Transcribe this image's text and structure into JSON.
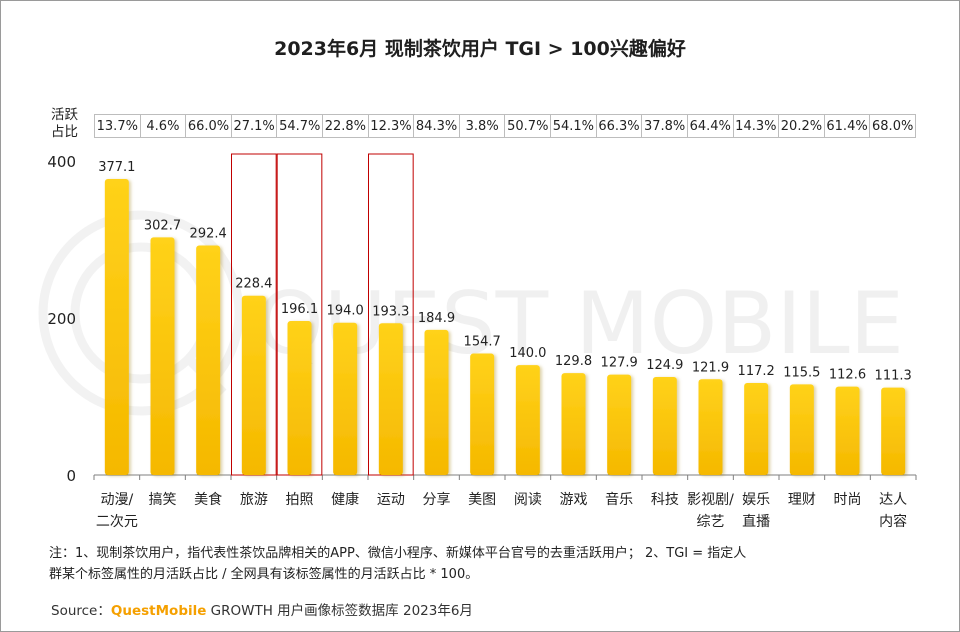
{
  "title": "2023年6月 现制茶饮用户 TGI > 100兴趣偏好",
  "active_share_label": "活跃占比",
  "active_shares": [
    "13.7%",
    "4.6%",
    "66.0%",
    "27.1%",
    "54.7%",
    "22.8%",
    "12.3%",
    "84.3%",
    "3.8%",
    "50.7%",
    "54.1%",
    "66.3%",
    "37.8%",
    "64.4%",
    "14.3%",
    "20.2%",
    "61.4%",
    "68.0%"
  ],
  "watermark": "QUEST MOBILE",
  "chart_data": {
    "type": "bar",
    "categories": [
      "动漫/二次元",
      "搞笑",
      "美食",
      "旅游",
      "拍照",
      "健康",
      "运动",
      "分享",
      "美图",
      "阅读",
      "游戏",
      "音乐",
      "科技",
      "影视剧/综艺",
      "娱乐直播",
      "理财",
      "时尚",
      "达人内容"
    ],
    "category_lines": [
      [
        "动漫/",
        "二次元"
      ],
      [
        "搞笑"
      ],
      [
        "美食"
      ],
      [
        "旅游"
      ],
      [
        "拍照"
      ],
      [
        "健康"
      ],
      [
        "运动"
      ],
      [
        "分享"
      ],
      [
        "美图"
      ],
      [
        "阅读"
      ],
      [
        "游戏"
      ],
      [
        "音乐"
      ],
      [
        "科技"
      ],
      [
        "影视剧/",
        "综艺"
      ],
      [
        "娱乐",
        "直播"
      ],
      [
        "理财"
      ],
      [
        "时尚"
      ],
      [
        "达人",
        "内容"
      ]
    ],
    "values": [
      377.1,
      302.7,
      292.4,
      228.4,
      196.1,
      194.0,
      193.3,
      184.9,
      154.7,
      140.0,
      129.8,
      127.9,
      124.9,
      121.9,
      117.2,
      115.5,
      112.6,
      111.3
    ],
    "labels": [
      "377.1",
      "302.7",
      "292.4",
      "228.4",
      "196.1",
      "194.0",
      "193.3",
      "184.9",
      "154.7",
      "140.0",
      "129.8",
      "127.9",
      "124.9",
      "121.9",
      "117.2",
      "115.5",
      "112.6",
      "111.3"
    ],
    "yticks": [
      "0",
      "200",
      "400"
    ],
    "ytick_values": [
      0,
      200,
      400
    ],
    "ylim": [
      0,
      400
    ],
    "highlighted": [
      "旅游",
      "拍照",
      "运动"
    ],
    "bar_color_top": "#ffd21a",
    "bar_color_bottom": "#f5b800",
    "highlight_color": "#c00000"
  },
  "note_lines": [
    "注：1、现制茶饮用户，指代表性茶饮品牌相关的APP、微信小程序、新媒体平台官号的去重活跃用户；  2、TGI = 指定人",
    "群某个标签属性的月活跃占比 / 全网具有该标签属性的月活跃占比 * 100。"
  ],
  "source": {
    "prefix": "Source：",
    "brand": "QuestMobile",
    "suffix": " GROWTH 用户画像标签数据库 2023年6月"
  }
}
